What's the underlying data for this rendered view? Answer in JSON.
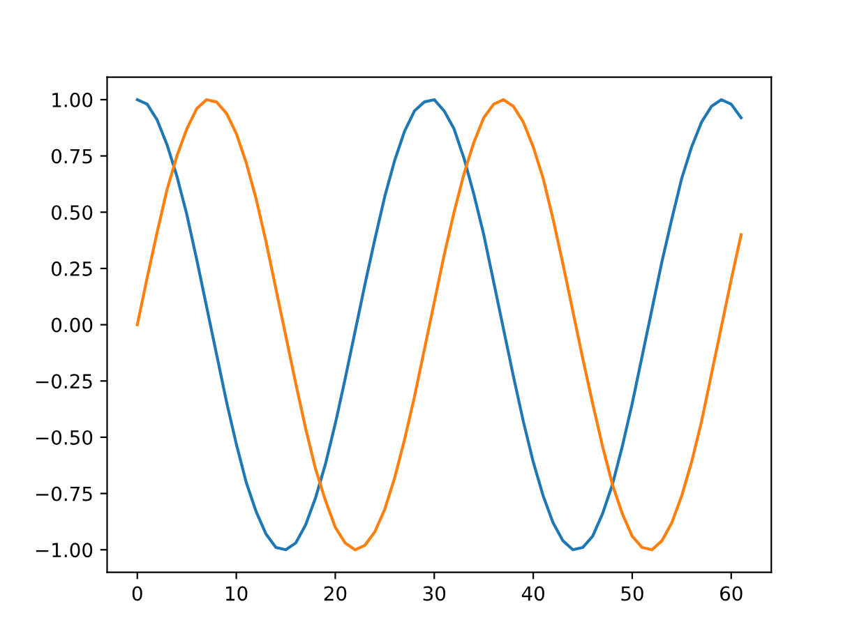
{
  "chart_data": {
    "type": "line",
    "x": [
      0,
      1,
      2,
      3,
      4,
      5,
      6,
      7,
      8,
      9,
      10,
      11,
      12,
      13,
      14,
      15,
      16,
      17,
      18,
      19,
      20,
      21,
      22,
      23,
      24,
      25,
      26,
      27,
      28,
      29,
      30,
      31,
      32,
      33,
      34,
      35,
      36,
      37,
      38,
      39,
      40,
      41,
      42,
      43,
      44,
      45,
      46,
      47,
      48,
      49,
      50,
      51,
      52,
      53,
      54,
      55,
      56,
      57,
      58,
      59,
      60,
      61
    ],
    "series": [
      {
        "color": "#1f77b4",
        "values": [
          1.0,
          0.98,
          0.91,
          0.8,
          0.66,
          0.49,
          0.29,
          0.08,
          -0.13,
          -0.34,
          -0.53,
          -0.7,
          -0.83,
          -0.93,
          -0.99,
          -1.0,
          -0.97,
          -0.89,
          -0.77,
          -0.62,
          -0.44,
          -0.24,
          -0.03,
          0.18,
          0.38,
          0.57,
          0.73,
          0.86,
          0.95,
          0.99,
          1.0,
          0.95,
          0.87,
          0.74,
          0.58,
          0.4,
          0.19,
          -0.02,
          -0.23,
          -0.43,
          -0.61,
          -0.76,
          -0.88,
          -0.96,
          -1.0,
          -0.99,
          -0.94,
          -0.84,
          -0.71,
          -0.54,
          -0.35,
          -0.14,
          0.07,
          0.28,
          0.47,
          0.65,
          0.79,
          0.9,
          0.97,
          1.0,
          0.98,
          0.92
        ]
      },
      {
        "color": "#ff7f0e",
        "values": [
          0.0,
          0.21,
          0.41,
          0.6,
          0.75,
          0.87,
          0.96,
          1.0,
          0.99,
          0.94,
          0.85,
          0.72,
          0.56,
          0.37,
          0.16,
          -0.05,
          -0.26,
          -0.46,
          -0.64,
          -0.78,
          -0.9,
          -0.97,
          -1.0,
          -0.98,
          -0.92,
          -0.82,
          -0.68,
          -0.51,
          -0.32,
          -0.11,
          0.1,
          0.31,
          0.5,
          0.67,
          0.81,
          0.92,
          0.98,
          1.0,
          0.97,
          0.9,
          0.79,
          0.65,
          0.47,
          0.27,
          0.06,
          -0.15,
          -0.35,
          -0.54,
          -0.71,
          -0.84,
          -0.94,
          -0.99,
          -1.0,
          -0.96,
          -0.88,
          -0.76,
          -0.61,
          -0.43,
          -0.22,
          -0.01,
          0.2,
          0.4
        ]
      }
    ],
    "xlim": [
      -3.05,
      64.05
    ],
    "xticks": [
      0,
      10,
      20,
      30,
      40,
      50,
      60
    ],
    "ylim": [
      -1.1,
      1.1
    ],
    "yticks": [
      {
        "value": -1.0,
        "label": "−1.00"
      },
      {
        "value": -0.75,
        "label": "−0.75"
      },
      {
        "value": -0.5,
        "label": "−0.50"
      },
      {
        "value": -0.25,
        "label": "−0.25"
      },
      {
        "value": 0.0,
        "label": "0.00"
      },
      {
        "value": 0.25,
        "label": "0.25"
      },
      {
        "value": 0.5,
        "label": "0.50"
      },
      {
        "value": 0.75,
        "label": "0.75"
      },
      {
        "value": 1.0,
        "label": "1.00"
      }
    ],
    "grid": false,
    "legend": false
  }
}
